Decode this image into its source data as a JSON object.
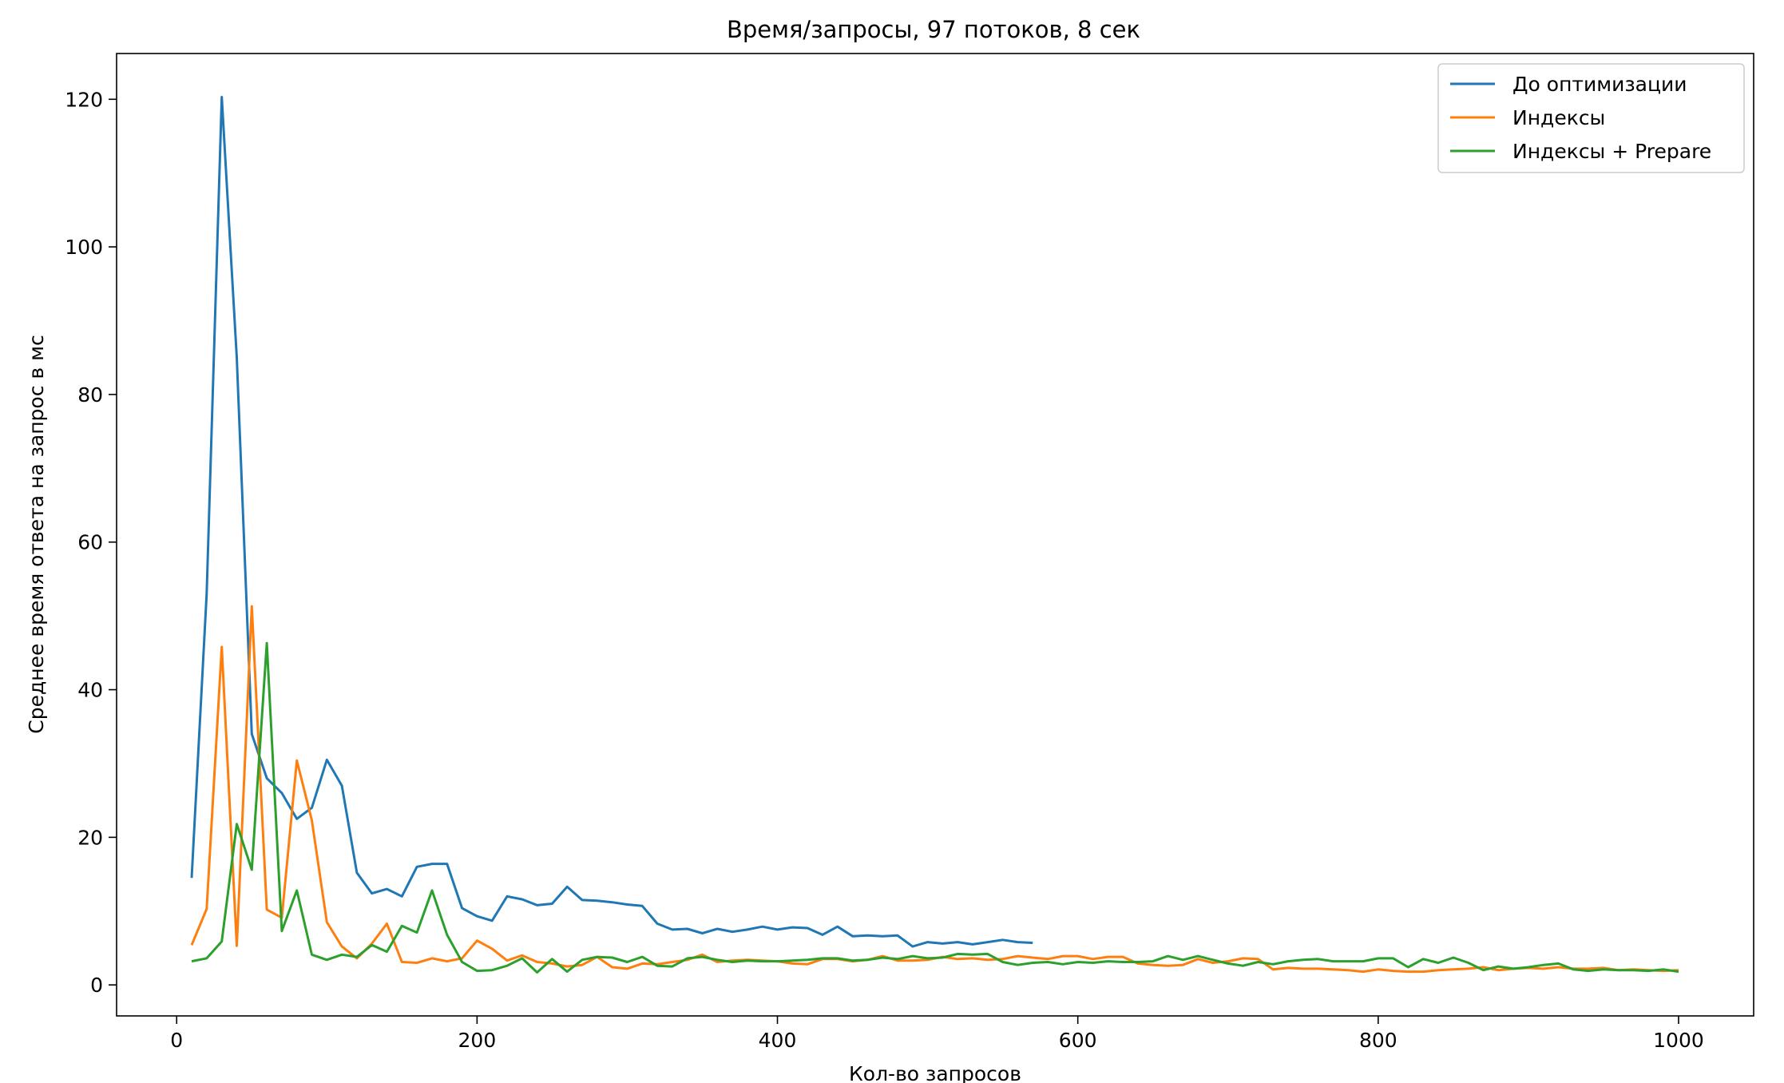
{
  "chart_data": {
    "type": "line",
    "title": "Время/запросы, 97 потоков, 8 сек",
    "xlabel": "Кол-во запросов",
    "ylabel": "Среднее время ответа на запрос в мс",
    "xlim": [
      -40,
      1050
    ],
    "ylim": [
      -4.2,
      126.2
    ],
    "xticks": [
      0,
      200,
      400,
      600,
      800,
      1000
    ],
    "yticks": [
      0,
      20,
      40,
      60,
      80,
      100,
      120
    ],
    "grid": false,
    "legend_position": "top-right",
    "series": [
      {
        "name": "До оптимизации",
        "color": "#1f77b4",
        "x": [
          10,
          20,
          30,
          40,
          50,
          60,
          70,
          80,
          90,
          100,
          110,
          120,
          130,
          140,
          150,
          160,
          170,
          180,
          190,
          200,
          210,
          220,
          230,
          240,
          250,
          260,
          270,
          280,
          290,
          300,
          310,
          320,
          330,
          340,
          350,
          360,
          370,
          380,
          390,
          400,
          410,
          420,
          430,
          440,
          450,
          460,
          470,
          480,
          490,
          500,
          510,
          520,
          530,
          540,
          550,
          560,
          570
        ],
        "y": [
          14.5,
          53,
          120.3,
          85,
          34,
          28,
          26,
          22.5,
          24,
          30.5,
          27,
          15.2,
          12.4,
          13,
          12,
          16,
          16.4,
          16.4,
          10.4,
          9.3,
          8.7,
          12,
          11.6,
          10.8,
          11,
          13.3,
          11.5,
          11.4,
          11.2,
          10.9,
          10.7,
          8.3,
          7.5,
          7.6,
          7,
          7.6,
          7.2,
          7.5,
          7.9,
          7.5,
          7.8,
          7.7,
          6.8,
          7.9,
          6.6,
          6.7,
          6.6,
          6.7,
          5.2,
          5.8,
          5.6,
          5.8,
          5.5,
          5.8,
          6.1,
          5.8,
          5.7
        ]
      },
      {
        "name": "Индексы",
        "color": "#ff7f0e",
        "x": [
          10,
          20,
          30,
          40,
          50,
          60,
          70,
          80,
          90,
          100,
          110,
          120,
          130,
          140,
          150,
          160,
          170,
          180,
          190,
          200,
          210,
          220,
          230,
          240,
          250,
          260,
          270,
          280,
          290,
          300,
          310,
          320,
          330,
          340,
          350,
          360,
          370,
          380,
          390,
          400,
          410,
          420,
          430,
          440,
          450,
          460,
          470,
          480,
          490,
          500,
          510,
          520,
          530,
          540,
          550,
          560,
          570,
          580,
          590,
          600,
          610,
          620,
          630,
          640,
          650,
          660,
          670,
          680,
          690,
          700,
          710,
          720,
          730,
          740,
          750,
          760,
          770,
          780,
          790,
          800,
          810,
          820,
          830,
          840,
          850,
          860,
          870,
          880,
          890,
          900,
          910,
          920,
          930,
          940,
          950,
          960,
          970,
          980,
          990,
          1000
        ],
        "y": [
          5.4,
          10.3,
          45.8,
          5.3,
          51.3,
          10.2,
          9.1,
          30.4,
          22.3,
          8.5,
          5.2,
          3.6,
          5.6,
          8.3,
          3.1,
          3.0,
          3.6,
          3.2,
          3.6,
          6.0,
          4.9,
          3.3,
          4.0,
          3.1,
          2.9,
          2.5,
          2.7,
          3.8,
          2.4,
          2.2,
          2.9,
          2.8,
          3.1,
          3.4,
          4.1,
          3.1,
          3.3,
          3.4,
          3.3,
          3.2,
          2.9,
          2.8,
          3.5,
          3.5,
          3.2,
          3.4,
          3.9,
          3.3,
          3.3,
          3.4,
          3.8,
          3.5,
          3.6,
          3.4,
          3.5,
          3.9,
          3.7,
          3.5,
          3.9,
          3.9,
          3.5,
          3.8,
          3.8,
          2.9,
          2.7,
          2.6,
          2.7,
          3.5,
          3.0,
          3.2,
          3.6,
          3.5,
          2.1,
          2.3,
          2.2,
          2.2,
          2.1,
          2.0,
          1.8,
          2.1,
          1.9,
          1.8,
          1.8,
          2.0,
          2.1,
          2.2,
          2.4,
          2.0,
          2.2,
          2.3,
          2.2,
          2.4,
          2.2,
          2.2,
          2.3,
          2.0,
          2.1,
          2.0,
          1.9,
          2.0
        ]
      },
      {
        "name": "Индексы + Prepare",
        "color": "#2ca02c",
        "x": [
          10,
          20,
          30,
          40,
          50,
          60,
          70,
          80,
          90,
          100,
          110,
          120,
          130,
          140,
          150,
          160,
          170,
          180,
          190,
          200,
          210,
          220,
          230,
          240,
          250,
          260,
          270,
          280,
          290,
          300,
          310,
          320,
          330,
          340,
          350,
          360,
          370,
          380,
          390,
          400,
          410,
          420,
          430,
          440,
          450,
          460,
          470,
          480,
          490,
          500,
          510,
          520,
          530,
          540,
          550,
          560,
          570,
          580,
          590,
          600,
          610,
          620,
          630,
          640,
          650,
          660,
          670,
          680,
          690,
          700,
          710,
          720,
          730,
          740,
          750,
          760,
          770,
          780,
          790,
          800,
          810,
          820,
          830,
          840,
          850,
          860,
          870,
          880,
          890,
          900,
          910,
          920,
          930,
          940,
          950,
          960,
          970,
          980,
          990,
          1000
        ],
        "y": [
          3.2,
          3.6,
          5.9,
          21.8,
          15.6,
          46.3,
          7.3,
          12.8,
          4.1,
          3.4,
          4.1,
          3.8,
          5.4,
          4.5,
          8.0,
          7.1,
          12.8,
          6.8,
          3.1,
          1.9,
          2.0,
          2.6,
          3.6,
          1.7,
          3.5,
          1.8,
          3.4,
          3.8,
          3.7,
          3.1,
          3.8,
          2.6,
          2.5,
          3.6,
          3.8,
          3.4,
          3.1,
          3.3,
          3.2,
          3.2,
          3.3,
          3.4,
          3.6,
          3.6,
          3.3,
          3.4,
          3.7,
          3.5,
          3.9,
          3.6,
          3.7,
          4.2,
          4.1,
          4.2,
          3.1,
          2.7,
          3.0,
          3.1,
          2.8,
          3.1,
          3.0,
          3.2,
          3.1,
          3.1,
          3.2,
          3.9,
          3.4,
          3.9,
          3.4,
          2.9,
          2.6,
          3.1,
          2.8,
          3.2,
          3.4,
          3.5,
          3.2,
          3.2,
          3.2,
          3.6,
          3.6,
          2.4,
          3.5,
          3.0,
          3.7,
          3.0,
          2.0,
          2.5,
          2.2,
          2.4,
          2.7,
          2.9,
          2.1,
          1.9,
          2.1,
          2.0,
          2.0,
          1.9,
          2.1,
          1.8
        ]
      }
    ]
  }
}
